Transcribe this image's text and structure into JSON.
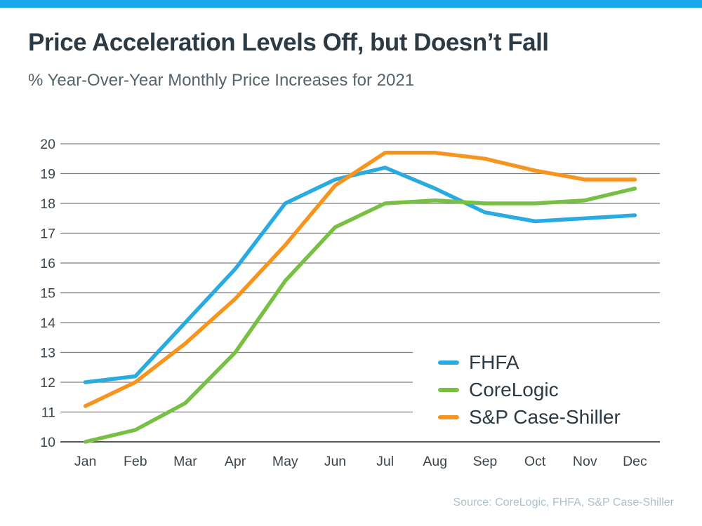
{
  "header": {
    "title": "Price Acceleration Levels Off, but Doesn’t Fall",
    "subtitle": "% Year-Over-Year Monthly Price Increases for 2021"
  },
  "chart_data": {
    "type": "line",
    "title": "Price Acceleration Levels Off, but Doesn’t Fall",
    "subtitle": "% Year-Over-Year Monthly Price Increases for 2021",
    "categories": [
      "Jan",
      "Feb",
      "Mar",
      "Apr",
      "May",
      "Jun",
      "Jul",
      "Aug",
      "Sep",
      "Oct",
      "Nov",
      "Dec"
    ],
    "series": [
      {
        "name": "FHFA",
        "color": "#29ABE2",
        "values": [
          12.0,
          12.2,
          14.0,
          15.8,
          18.0,
          18.8,
          19.2,
          18.5,
          17.7,
          17.4,
          17.5,
          17.6
        ]
      },
      {
        "name": "CoreLogic",
        "color": "#77C043",
        "values": [
          10.0,
          10.4,
          11.3,
          13.0,
          15.4,
          17.2,
          18.0,
          18.1,
          18.0,
          18.0,
          18.1,
          18.5
        ]
      },
      {
        "name": "S&P Case-Shiller",
        "color": "#F7941E",
        "values": [
          11.2,
          12.0,
          13.3,
          14.8,
          16.6,
          18.6,
          19.7,
          19.7,
          19.5,
          19.1,
          18.8,
          18.8
        ]
      }
    ],
    "xlabel": "",
    "ylabel": "",
    "ylim": [
      10,
      20
    ],
    "ytick_step": 1,
    "grid": "horizontal",
    "legend_position": "inside bottom-right"
  },
  "footer": {
    "source": "Source: CoreLogic, FHFA, S&P Case-Shiller"
  },
  "colors": {
    "accent_bar": "#17A9EA",
    "title_text": "#2B3A44",
    "subtitle_text": "#53646D",
    "tick_label": "#3A454D",
    "gridline": "#7E7E7E",
    "axis_line": "#3F3F3F",
    "source_text": "#ADBFC9"
  }
}
